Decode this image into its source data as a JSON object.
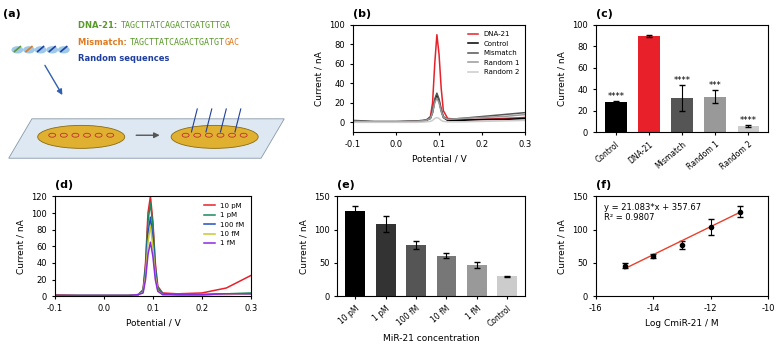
{
  "diagram": {
    "title": "(a)",
    "labels": [
      {
        "name": "DNA-21:",
        "color": "#5a9a2a",
        "sequence_parts": [
          "TAGCTTATCAGACTGATGTTGA"
        ],
        "part_colors": [
          "#5a9a2a"
        ]
      },
      {
        "name": "Mismatch:",
        "color": "#e07b20",
        "sequence_parts": [
          "TAGCTTATCAGACTGATGT",
          "GAC"
        ],
        "part_colors": [
          "#5a9a2a",
          "#e07b20"
        ]
      },
      {
        "name": "Random sequences",
        "color": "#1f3f9f",
        "sequence_parts": [],
        "part_colors": []
      }
    ]
  },
  "chart_data": [
    {
      "type": "line",
      "title": "(b)",
      "x_label": "Potential / V",
      "y_label": "Current / nA",
      "x": [
        -0.1,
        -0.05,
        0.0,
        0.05,
        0.07,
        0.08,
        0.085,
        0.09,
        0.095,
        0.1,
        0.105,
        0.11,
        0.12,
        0.15,
        0.2,
        0.25,
        0.3
      ],
      "series": [
        {
          "name": "DNA-21",
          "color": "#e8202a",
          "values": [
            1,
            0.5,
            0.5,
            1,
            2,
            6,
            20,
            60,
            90,
            70,
            35,
            12,
            4,
            3,
            3,
            4,
            5
          ]
        },
        {
          "name": "Control",
          "color": "#000000",
          "values": [
            1,
            0.5,
            0.5,
            1,
            2,
            4,
            10,
            22,
            28,
            22,
            12,
            5,
            2,
            2,
            3,
            3,
            4
          ]
        },
        {
          "name": "Mismatch",
          "color": "#555555",
          "values": [
            2,
            1,
            1,
            1.5,
            2.5,
            5,
            12,
            24,
            30,
            24,
            14,
            6,
            3,
            4,
            6,
            8,
            10
          ]
        },
        {
          "name": "Random 1",
          "color": "#999999",
          "values": [
            1,
            0.5,
            0.5,
            1,
            2,
            4,
            10,
            20,
            25,
            20,
            11,
            5,
            3,
            4,
            5,
            6,
            8
          ]
        },
        {
          "name": "Random 2",
          "color": "#cccccc",
          "values": [
            0,
            0,
            0,
            0,
            0.5,
            1,
            2,
            4,
            5,
            4,
            2,
            1,
            0.5,
            0.5,
            1,
            1.5,
            2
          ]
        }
      ],
      "xlim": [
        -0.1,
        0.3
      ],
      "xticks": [
        -0.1,
        {
          "value": 0,
          "label": "0.0"
        },
        0.1,
        0.2,
        0.3
      ],
      "ylim": [
        -10,
        100
      ],
      "yticks": [
        0,
        20,
        40,
        60,
        80,
        100
      ],
      "legend": "upper right"
    },
    {
      "type": "bar",
      "title": "(c)",
      "y_label": "Current / nA",
      "categories": [
        "Control",
        "DNA-21",
        "Mismatch",
        "Random 1",
        "Random 2"
      ],
      "values": [
        28,
        90,
        32,
        33,
        6
      ],
      "errors": [
        1,
        1,
        12,
        6,
        1
      ],
      "colors": [
        "#000000",
        "#e8202a",
        "#555555",
        "#999999",
        "#cccccc"
      ],
      "annotations": [
        "****",
        null,
        "****",
        "***",
        "****"
      ],
      "ylim": [
        0,
        100
      ],
      "yticks": [
        0,
        20,
        40,
        60,
        80,
        100
      ]
    },
    {
      "type": "line",
      "title": "(d)",
      "x_label": "Potential / V",
      "y_label": "Current / nA",
      "x": [
        -0.1,
        -0.05,
        0.0,
        0.05,
        0.07,
        0.08,
        0.085,
        0.09,
        0.095,
        0.1,
        0.105,
        0.11,
        0.12,
        0.15,
        0.2,
        0.25,
        0.3
      ],
      "series": [
        {
          "name": "10 pM",
          "color": "#e8202a",
          "values": [
            2,
            1,
            1,
            1,
            2,
            8,
            40,
            100,
            120,
            90,
            40,
            12,
            4,
            3,
            4,
            10,
            25
          ]
        },
        {
          "name": "1 pM",
          "color": "#1a8a5a",
          "values": [
            1,
            1,
            1,
            1,
            2,
            7,
            35,
            90,
            112,
            85,
            35,
            10,
            3,
            2,
            2,
            3,
            4
          ]
        },
        {
          "name": "100 fM",
          "color": "#1f4fbf",
          "values": [
            1,
            1,
            1,
            1,
            2,
            6,
            30,
            75,
            95,
            70,
            30,
            8,
            3,
            2,
            2,
            3,
            3
          ]
        },
        {
          "name": "10 fM",
          "color": "#c8c832",
          "values": [
            1,
            1,
            1,
            1,
            2,
            5,
            25,
            65,
            85,
            60,
            25,
            7,
            2,
            2,
            2,
            2,
            3
          ]
        },
        {
          "name": "1 fM",
          "color": "#8b2be2",
          "values": [
            1,
            1,
            1,
            1,
            2,
            4,
            20,
            50,
            65,
            48,
            20,
            6,
            2,
            2,
            2,
            3,
            3
          ]
        }
      ],
      "xlim": [
        -0.1,
        0.3
      ],
      "xticks": [
        -0.1,
        {
          "value": 0,
          "label": "0.0"
        },
        0.1,
        0.2,
        0.3
      ],
      "ylim": [
        0,
        120
      ],
      "yticks": [
        0,
        20,
        40,
        60,
        80,
        100,
        120
      ],
      "legend": "upper right"
    },
    {
      "type": "bar",
      "title": "(e)",
      "x_label": "MiR-21 concentration",
      "y_label": "Current / nA",
      "categories": [
        "10 pM",
        "1 pM",
        "100 fM",
        "10 fM",
        "1 fM",
        "Control"
      ],
      "values": [
        128,
        108,
        77,
        61,
        47,
        30
      ],
      "errors": [
        8,
        12,
        6,
        4,
        4,
        1
      ],
      "colors": [
        "#000000",
        "#333333",
        "#555555",
        "#777777",
        "#999999",
        "#cccccc"
      ],
      "ylim": [
        0,
        150
      ],
      "yticks": [
        0,
        50,
        100,
        150
      ]
    },
    {
      "type": "scatter",
      "title": "(f)",
      "x_label": "Log CmiR-21 / M",
      "y_label": "Current / nA",
      "x": [
        -15,
        -14,
        -13,
        -12,
        -11
      ],
      "values": [
        46,
        61,
        77,
        104,
        127
      ],
      "errors": [
        4,
        3,
        6,
        12,
        8
      ],
      "color": "#000000",
      "fit": {
        "slope": 21.083,
        "intercept": 357.67,
        "color": "#e8402a"
      },
      "annotations": [
        "y = 21.083*x + 357.67",
        "R² = 0.9807"
      ],
      "xlim": [
        -16,
        -10
      ],
      "xticks": [
        -16,
        -14,
        -12,
        -10
      ],
      "ylim": [
        0,
        150
      ],
      "yticks": [
        0,
        50,
        100,
        150
      ]
    }
  ]
}
